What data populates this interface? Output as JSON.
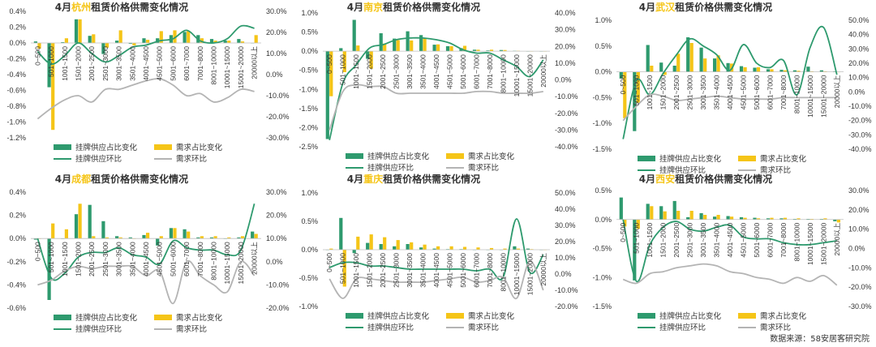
{
  "colors": {
    "bar1": "#2e9a6e",
    "bar2": "#f5c518",
    "line1": "#2e9a6e",
    "line2": "#b4b4b4",
    "city": "#f5c518"
  },
  "source": "数据来源：58安居客研究院",
  "chart_data": [
    {
      "type": "bar",
      "title_prefix": "4月",
      "city": "杭州",
      "title_suffix": "租赁价格供需变化情况",
      "categories": [
        "0~500",
        "501~1000",
        "1001~1500",
        "1501~2000",
        "2001~2500",
        "2501~3000",
        "3001~3500",
        "3501~4000",
        "4001~4500",
        "4501~5000",
        "5001~6000",
        "6001~7000",
        "7001~8000",
        "8001~10000",
        "10001~15000",
        "15001~20000",
        "20000以上"
      ],
      "y_left": {
        "min": -1.2,
        "max": 0.4,
        "ticks": [
          "0.4%",
          "0.2%",
          "0.0%",
          "-0.2%",
          "-0.4%",
          "-0.6%",
          "-0.8%",
          "-1.0%",
          "-1.2%"
        ]
      },
      "y_right": {
        "min": -30,
        "max": 30,
        "ticks": [
          "30.0%",
          "20.0%",
          "10.0%",
          "0.0%",
          "-10.0%",
          "-20.0%",
          "-30.0%"
        ]
      },
      "series": [
        {
          "name": "挂牌供应占比变化",
          "kind": "bar",
          "axis": "left",
          "values": [
            0.02,
            -0.56,
            0.01,
            0.3,
            0.09,
            -0.14,
            0.03,
            -0.01,
            0.06,
            0.06,
            0.1,
            0.14,
            0.1,
            0.05,
            0.03,
            0.05,
            0.0
          ]
        },
        {
          "name": "需求占比变化",
          "kind": "bar",
          "axis": "left",
          "values": [
            -0.07,
            -1.1,
            0.06,
            0.3,
            0.11,
            -0.06,
            0.16,
            -0.03,
            0.04,
            0.15,
            0.16,
            0.15,
            0.06,
            0.03,
            0.03,
            0.02,
            0.1
          ]
        },
        {
          "name": "挂牌供应环比",
          "kind": "line",
          "axis": "right",
          "values": [
            11,
            5,
            9,
            15,
            10,
            6,
            9,
            13,
            14,
            16,
            17,
            21,
            16,
            15,
            17,
            23,
            22
          ]
        },
        {
          "name": "需求环比",
          "kind": "line",
          "axis": "right",
          "values": [
            -21,
            -16,
            -12,
            -10,
            -13,
            -7,
            -7,
            -5,
            -3,
            -2,
            -5,
            -10,
            -9,
            -13,
            -11,
            -7,
            -8
          ]
        }
      ]
    },
    {
      "type": "bar",
      "title_prefix": "4月",
      "city": "南京",
      "title_suffix": "租赁价格供需变化情况",
      "categories": [
        "0~500",
        "501~1000",
        "1001~1500",
        "1501~2000",
        "2001~2500",
        "2501~3000",
        "3001~3500",
        "3501~4000",
        "4001~4500",
        "4501~5000",
        "5001~6000",
        "6001~7000",
        "7001~8000",
        "8001~10000",
        "10001~15000",
        "15001~20000",
        "20000以上"
      ],
      "y_left": {
        "min": -2.5,
        "max": 1.0,
        "ticks": [
          "1.0%",
          "0.5%",
          "0.0%",
          "-0.5%",
          "-1.0%",
          "-1.5%",
          "-2.0%",
          "-2.5%"
        ]
      },
      "y_right": {
        "min": -40,
        "max": 40,
        "ticks": [
          "40.0%",
          "30.0%",
          "20.0%",
          "10.0%",
          "0.0%",
          "-10.0%",
          "-20.0%",
          "-30.0%",
          "-40.0%"
        ]
      },
      "series": [
        {
          "name": "挂牌供应占比变化",
          "kind": "bar",
          "axis": "left",
          "values": [
            -2.3,
            0.08,
            0.82,
            -0.2,
            0.47,
            0.33,
            0.52,
            0.42,
            0.17,
            0.13,
            0.08,
            0.04,
            0.02,
            0.03,
            0.01,
            0.0,
            0.0
          ]
        },
        {
          "name": "需求占比变化",
          "kind": "bar",
          "axis": "left",
          "values": [
            -1.18,
            -0.55,
            0.15,
            -0.46,
            0.2,
            0.29,
            0.28,
            0.34,
            0.18,
            0.13,
            0.14,
            0.04,
            0.04,
            0.03,
            0.01,
            0.0,
            0.0
          ]
        },
        {
          "name": "挂牌供应环比",
          "kind": "line",
          "axis": "right",
          "values": [
            -36,
            -2,
            9,
            19,
            21,
            24,
            25,
            25,
            24,
            22,
            18,
            16,
            16,
            12,
            8,
            2,
            12
          ]
        },
        {
          "name": "需求环比",
          "kind": "line",
          "axis": "right",
          "values": [
            -30,
            -7,
            -3,
            -4,
            -4,
            -8,
            -8,
            -8,
            -8,
            -8,
            -8,
            -7,
            -7,
            -8,
            -8,
            -8,
            -7
          ]
        }
      ]
    },
    {
      "type": "bar",
      "title_prefix": "4月",
      "city": "武汉",
      "title_suffix": "租赁价格供需变化情况",
      "categories": [
        "0~500",
        "501~1000",
        "1001~1500",
        "1501~2000",
        "2001~2500",
        "2501~3000",
        "3001~3500",
        "3501~4000",
        "4001~4500",
        "4501~5000",
        "5001~6000",
        "6001~7000",
        "7001~8000",
        "8001~10000",
        "10001~15000",
        "15001~20000",
        "20000以上"
      ],
      "y_left": {
        "min": -1.5,
        "max": 1.0,
        "ticks": [
          "1.0%",
          "0.5%",
          "0.0%",
          "-0.5%",
          "-1.0%",
          "-1.5%"
        ]
      },
      "y_right": {
        "min": -40,
        "max": 50,
        "ticks": [
          "50.0%",
          "40.0%",
          "30.0%",
          "20.0%",
          "10.0%",
          "0.0%",
          "-10.0%",
          "-20.0%",
          "-30.0%",
          "-40.0%"
        ]
      },
      "series": [
        {
          "name": "挂牌供应占比变化",
          "kind": "bar",
          "axis": "left",
          "values": [
            -0.13,
            -1.15,
            0.52,
            0.18,
            0.12,
            0.67,
            0.47,
            0.26,
            0.17,
            0.11,
            0.08,
            0.05,
            0.04,
            0.03,
            0.1,
            0.03,
            0.01
          ]
        },
        {
          "name": "需求占比变化",
          "kind": "bar",
          "axis": "left",
          "values": [
            -0.9,
            -0.6,
            0.12,
            -0.06,
            0.35,
            0.56,
            0.26,
            0.32,
            0.16,
            0.09,
            0.09,
            0.05,
            0.03,
            0.02,
            0.01,
            0.01,
            0.0
          ]
        },
        {
          "name": "挂牌供应环比",
          "kind": "line",
          "axis": "right",
          "values": [
            -33,
            8,
            -2,
            13,
            26,
            37,
            32,
            26,
            15,
            33,
            20,
            17,
            22,
            -2,
            31,
            45,
            12
          ]
        },
        {
          "name": "需求环比",
          "kind": "line",
          "axis": "right",
          "values": [
            -20,
            -10,
            -2,
            -3,
            -6,
            -5,
            -4,
            -3,
            -4,
            -5,
            -5,
            -5,
            -4,
            -4,
            -4,
            -4,
            -4
          ]
        }
      ]
    },
    {
      "type": "bar",
      "title_prefix": "4月",
      "city": "成都",
      "title_suffix": "租赁价格供需变化情况",
      "categories": [
        "0~500",
        "501~1000",
        "1001~1500",
        "1501~2000",
        "2001~2500",
        "2501~3000",
        "3001~3500",
        "3501~4000",
        "4001~4500",
        "4501~5000",
        "5001~6000",
        "6001~7000",
        "7001~8000",
        "8001~10000",
        "10001~15000",
        "15001~20000",
        "20000以上"
      ],
      "y_left": {
        "min": -0.6,
        "max": 0.4,
        "ticks": [
          "0.4%",
          "0.2%",
          "0.0%",
          "-0.2%",
          "-0.4%",
          "-0.6%"
        ]
      },
      "y_right": {
        "min": -20,
        "max": 30,
        "ticks": [
          "30.0%",
          "20.0%",
          "10.0%",
          "0.0%",
          "-10.0%",
          "-20.0%"
        ]
      },
      "series": [
        {
          "name": "挂牌供应占比变化",
          "kind": "bar",
          "axis": "left",
          "values": [
            -0.01,
            -0.53,
            0.0,
            0.21,
            0.29,
            0.15,
            0.02,
            0.01,
            0.03,
            -0.06,
            0.09,
            0.08,
            0.01,
            0.01,
            0.0,
            0.01,
            0.06
          ]
        },
        {
          "name": "需求占比变化",
          "kind": "bar",
          "axis": "left",
          "values": [
            0.0,
            0.13,
            0.08,
            0.3,
            0.02,
            0.01,
            0.01,
            0.0,
            0.05,
            0.02,
            0.09,
            0.06,
            0.02,
            0.02,
            0.01,
            0.02,
            0.04
          ]
        },
        {
          "name": "挂牌供应环比",
          "kind": "line",
          "axis": "right",
          "values": [
            10,
            -7,
            -5,
            2,
            4,
            4,
            6,
            3,
            2,
            -1,
            9,
            6,
            5,
            5,
            3,
            5,
            25
          ]
        },
        {
          "name": "需求环比",
          "kind": "line",
          "axis": "right",
          "values": [
            -10,
            -8,
            -4,
            -2,
            -3,
            -2,
            -2,
            -2,
            -6,
            -4,
            -18,
            0,
            -6,
            -10,
            -13,
            0,
            -6
          ]
        }
      ]
    },
    {
      "type": "bar",
      "title_prefix": "4月",
      "city": "重庆",
      "title_suffix": "租赁价格供需变化情况",
      "categories": [
        "0~500",
        "501~1000",
        "1001~1500",
        "1501~2000",
        "2001~2500",
        "2501~3000",
        "3001~3500",
        "3501~4000",
        "4001~4500",
        "4501~5000",
        "5001~6000",
        "6001~7000",
        "7001~8000",
        "8001~10000",
        "10001~15000",
        "15001~20000",
        "20000以上"
      ],
      "y_left": {
        "min": -1.0,
        "max": 1.0,
        "ticks": [
          "1.0%",
          "0.5%",
          "0.0%",
          "-0.5%",
          "-1.0%"
        ]
      },
      "y_right": {
        "min": -20,
        "max": 50,
        "ticks": [
          "50.0%",
          "40.0%",
          "30.0%",
          "20.0%",
          "10.0%",
          "0.0%",
          "-10.0%",
          "-20.0%"
        ]
      },
      "series": [
        {
          "name": "挂牌供应占比变化",
          "kind": "bar",
          "axis": "left",
          "values": [
            0.0,
            0.56,
            -0.06,
            0.12,
            0.1,
            0.06,
            0.1,
            0.04,
            0.02,
            0.01,
            0.01,
            0.0,
            0.0,
            0.0,
            0.06,
            0.02,
            0.0
          ]
        },
        {
          "name": "需求占比变化",
          "kind": "bar",
          "axis": "left",
          "values": [
            0.02,
            -0.65,
            0.23,
            0.27,
            0.22,
            0.17,
            0.13,
            0.09,
            0.06,
            0.06,
            0.05,
            0.04,
            0.03,
            0.02,
            0.02,
            0.01,
            0.0
          ]
        },
        {
          "name": "挂牌供应环比",
          "kind": "line",
          "axis": "right",
          "values": [
            4,
            7,
            7,
            5,
            5,
            4,
            3,
            3,
            3,
            3,
            3,
            2,
            3,
            -2,
            34,
            1,
            12
          ]
        },
        {
          "name": "需求环比",
          "kind": "line",
          "axis": "right",
          "values": [
            -3,
            -15,
            -3,
            -3,
            -4,
            -5,
            -5,
            -5,
            -4,
            -3,
            -2,
            -5,
            -4,
            -2,
            -15,
            8,
            -10
          ]
        }
      ]
    },
    {
      "type": "bar",
      "title_prefix": "4月",
      "city": "西安",
      "title_suffix": "租赁价格供需变化情况",
      "categories": [
        "0~500",
        "501~1000",
        "1001~1500",
        "1501~2000",
        "2001~2500",
        "2501~3000",
        "3001~3500",
        "3501~4000",
        "4001~4500",
        "4501~5000",
        "5001~6000",
        "6001~7000",
        "7001~8000",
        "8001~10000",
        "10001~15000",
        "15001~20000",
        "20000以上"
      ],
      "y_left": {
        "min": -1.5,
        "max": 0.5,
        "ticks": [
          "0.5%",
          "0.0%",
          "-0.5%",
          "-1.0%",
          "-1.5%"
        ]
      },
      "y_right": {
        "min": -30,
        "max": 30,
        "ticks": [
          "30.0%",
          "20.0%",
          "10.0%",
          "0.0%",
          "-10.0%",
          "-20.0%",
          "-30.0%"
        ]
      },
      "series": [
        {
          "name": "挂牌供应占比变化",
          "kind": "bar",
          "axis": "left",
          "values": [
            0.38,
            -1.05,
            0.27,
            0.23,
            0.32,
            0.04,
            0.11,
            0.05,
            0.06,
            0.04,
            0.03,
            0.02,
            0.02,
            0.01,
            0.01,
            0.01,
            -0.03
          ]
        },
        {
          "name": "需求占比变化",
          "kind": "bar",
          "axis": "left",
          "values": [
            -0.12,
            -0.16,
            0.23,
            0.14,
            0.15,
            0.15,
            0.08,
            0.08,
            0.05,
            0.03,
            0.02,
            0.03,
            0.03,
            0.02,
            0.01,
            0.02,
            -0.05
          ]
        },
        {
          "name": "挂牌供应环比",
          "kind": "line",
          "axis": "right",
          "values": [
            15,
            -17,
            2,
            11,
            14,
            10,
            9,
            11,
            12,
            6,
            5,
            5,
            3,
            2,
            2,
            3,
            4
          ]
        },
        {
          "name": "需求环比",
          "kind": "line",
          "axis": "right",
          "values": [
            -16,
            -18,
            -13,
            -12,
            -10,
            -9,
            -8,
            -9,
            -12,
            -13,
            -15,
            -16,
            -18,
            -15,
            -17,
            -14,
            -19
          ]
        }
      ]
    }
  ]
}
